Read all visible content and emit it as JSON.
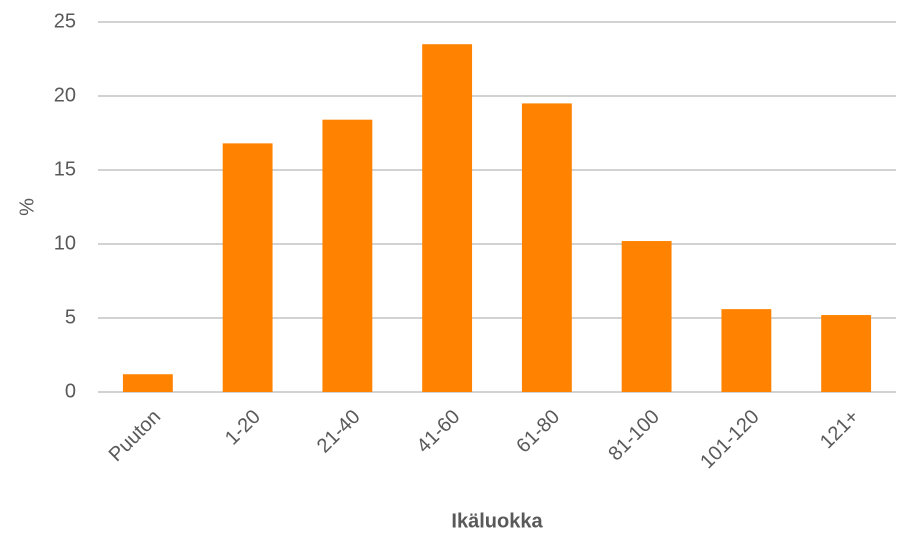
{
  "chart_data": {
    "type": "bar",
    "categories": [
      "Puuton",
      "1-20",
      "21-40",
      "41-60",
      "61-80",
      "81-100",
      "101-120",
      "121+"
    ],
    "values": [
      1.2,
      16.8,
      18.4,
      23.5,
      19.5,
      10.2,
      5.6,
      5.2
    ],
    "color": "#ff8300",
    "ylim": [
      0,
      25
    ],
    "yticks": [
      0,
      5,
      10,
      15,
      20,
      25
    ],
    "grid": true,
    "ylabel": "%",
    "xlabel": "Ikäluokka"
  }
}
